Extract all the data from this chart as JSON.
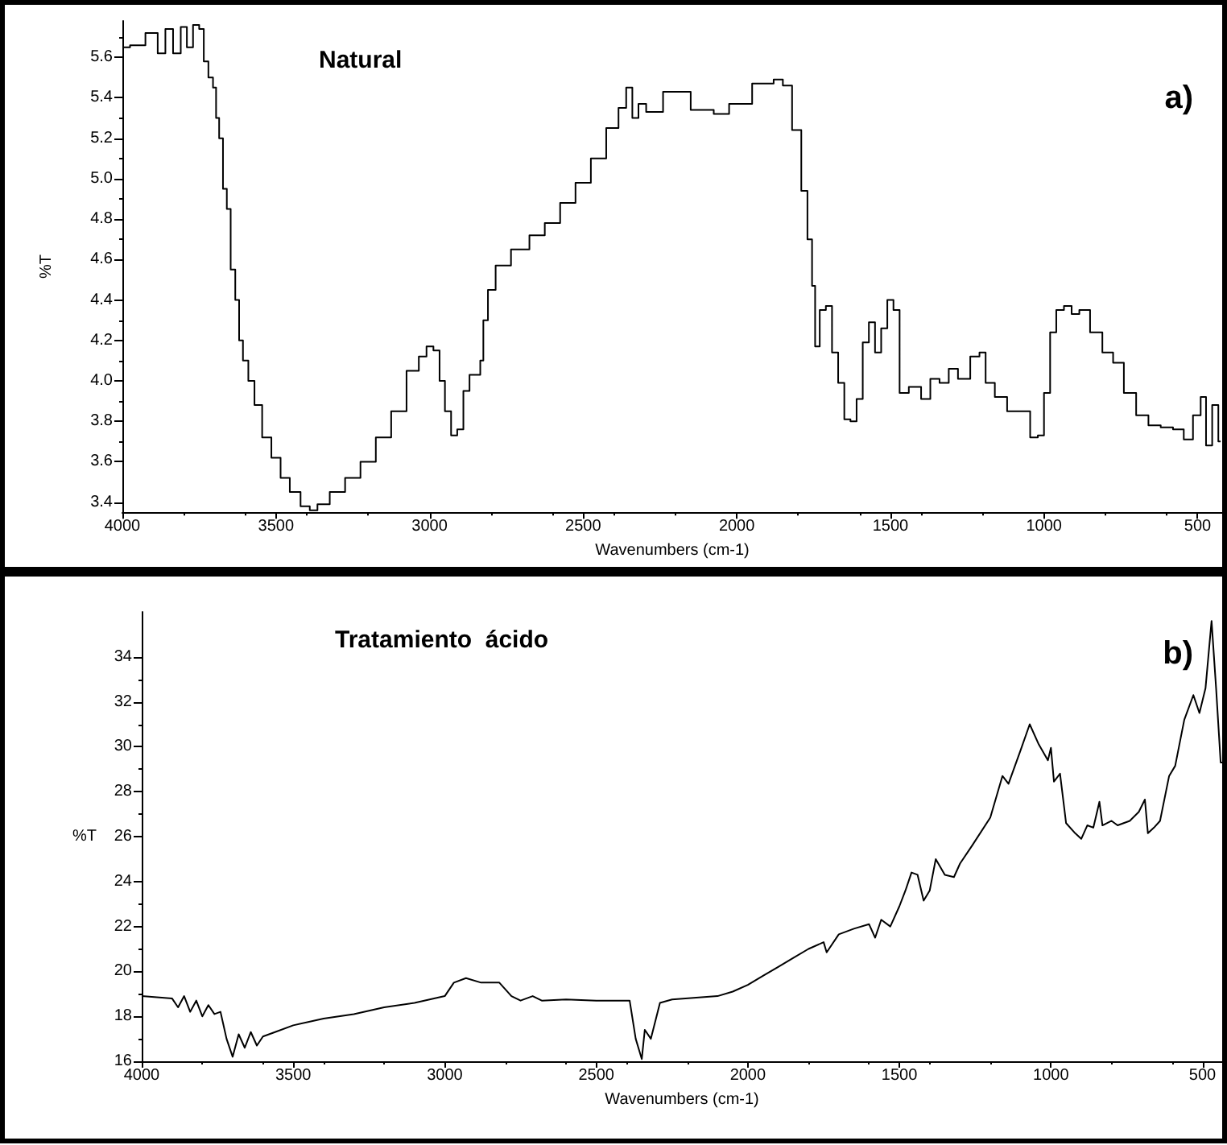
{
  "chart_data": [
    {
      "type": "step",
      "title": "Natural",
      "xlabel": "Wavenumbers (cm-1)",
      "ylabel": "%T",
      "annotations": [
        "a)"
      ],
      "xlim": [
        4000,
        420
      ],
      "xticks": [
        4000,
        3500,
        3000,
        2500,
        2000,
        1500,
        1000,
        500
      ],
      "ylim": [
        3.35,
        5.78
      ],
      "yticks": [
        3.4,
        3.6,
        3.8,
        {
          "value": 4,
          "label": "4.0"
        },
        4.2,
        4.4,
        4.6,
        4.8,
        {
          "value": 5,
          "label": "5.0"
        },
        5.2,
        5.4,
        5.6
      ],
      "grid": false,
      "series": [
        {
          "color": "#000000",
          "x": [
            4000,
            3950,
            3900,
            3870,
            3850,
            3820,
            3800,
            3780,
            3760,
            3740,
            3730,
            3710,
            3700,
            3690,
            3680,
            3665,
            3655,
            3640,
            3625,
            3615,
            3600,
            3580,
            3560,
            3530,
            3500,
            3470,
            3440,
            3400,
            3380,
            3350,
            3300,
            3250,
            3200,
            3150,
            3100,
            3050,
            3020,
            3000,
            2975,
            2960,
            2940,
            2920,
            2900,
            2880,
            2860,
            2840,
            2830,
            2820,
            2800,
            2770,
            2700,
            2650,
            2600,
            2550,
            2500,
            2450,
            2400,
            2370,
            2350,
            2330,
            2310,
            2280,
            2200,
            2100,
            2050,
            2000,
            1900,
            1860,
            1840,
            1800,
            1780,
            1760,
            1750,
            1740,
            1720,
            1700,
            1680,
            1660,
            1640,
            1620,
            1600,
            1580,
            1560,
            1540,
            1520,
            1500,
            1480,
            1460,
            1420,
            1380,
            1360,
            1320,
            1300,
            1260,
            1220,
            1200,
            1180,
            1140,
            1100,
            1060,
            1030,
            1010,
            990,
            970,
            950,
            920,
            900,
            870,
            830,
            790,
            760,
            720,
            680,
            640,
            600,
            560,
            530,
            500,
            480,
            465,
            440,
            425
          ],
          "values": [
            5.65,
            5.66,
            5.72,
            5.62,
            5.74,
            5.62,
            5.75,
            5.65,
            5.76,
            5.74,
            5.58,
            5.5,
            5.45,
            5.3,
            5.2,
            4.95,
            4.85,
            4.55,
            4.4,
            4.2,
            4.1,
            4.0,
            3.88,
            3.72,
            3.62,
            3.52,
            3.45,
            3.38,
            3.36,
            3.39,
            3.45,
            3.52,
            3.6,
            3.72,
            3.85,
            4.05,
            4.12,
            4.17,
            4.15,
            4.0,
            3.85,
            3.73,
            3.76,
            3.95,
            4.03,
            4.03,
            4.1,
            4.3,
            4.45,
            4.57,
            4.65,
            4.72,
            4.78,
            4.88,
            4.98,
            5.1,
            5.25,
            5.35,
            5.45,
            5.3,
            5.37,
            5.33,
            5.43,
            5.34,
            5.32,
            5.37,
            5.47,
            5.49,
            5.46,
            5.24,
            4.94,
            4.7,
            4.47,
            4.17,
            4.35,
            4.37,
            4.14,
            3.99,
            3.81,
            3.8,
            3.91,
            4.19,
            4.29,
            4.14,
            4.26,
            4.4,
            4.35,
            3.94,
            3.97,
            3.91,
            4.01,
            3.99,
            4.06,
            4.01,
            4.12,
            4.14,
            3.99,
            3.92,
            3.85,
            3.85,
            3.72,
            3.73,
            3.94,
            4.24,
            4.35,
            4.37,
            4.33,
            4.35,
            4.24,
            4.14,
            4.09,
            3.94,
            3.83,
            3.78,
            3.77,
            3.76,
            3.71,
            3.83,
            3.92,
            3.68,
            3.88,
            3.7
          ]
        }
      ]
    },
    {
      "type": "line",
      "title": "Tratamiento  ácido",
      "xlabel": "Wavenumbers (cm-1)",
      "ylabel": "%T",
      "annotations": [
        "b)"
      ],
      "xlim": [
        4000,
        435
      ],
      "xticks": [
        4000,
        3500,
        3000,
        2500,
        2000,
        1500,
        1000,
        500
      ],
      "ylim": [
        16,
        36
      ],
      "yticks": [
        16,
        18,
        20,
        22,
        24,
        26,
        28,
        30,
        32,
        34
      ],
      "grid": false,
      "series": [
        {
          "color": "#000000",
          "x": [
            4000,
            3900,
            3880,
            3860,
            3840,
            3820,
            3800,
            3780,
            3760,
            3740,
            3720,
            3700,
            3680,
            3660,
            3640,
            3620,
            3600,
            3560,
            3500,
            3400,
            3300,
            3200,
            3100,
            3000,
            2970,
            2930,
            2880,
            2820,
            2780,
            2750,
            2710,
            2680,
            2600,
            2500,
            2420,
            2390,
            2370,
            2350,
            2340,
            2320,
            2290,
            2250,
            2100,
            2050,
            2000,
            1950,
            1900,
            1850,
            1800,
            1750,
            1740,
            1700,
            1650,
            1600,
            1580,
            1560,
            1530,
            1500,
            1480,
            1460,
            1440,
            1420,
            1400,
            1380,
            1350,
            1320,
            1300,
            1260,
            1200,
            1160,
            1140,
            1100,
            1070,
            1040,
            1010,
            1000,
            990,
            970,
            950,
            920,
            900,
            880,
            860,
            840,
            830,
            800,
            780,
            740,
            710,
            690,
            680,
            660,
            640,
            610,
            590,
            560,
            530,
            510,
            490,
            470,
            455,
            440,
            435
          ],
          "values": [
            18.9,
            18.8,
            18.4,
            18.9,
            18.2,
            18.7,
            18.0,
            18.5,
            18.1,
            18.2,
            17.0,
            16.2,
            17.2,
            16.6,
            17.3,
            16.7,
            17.1,
            17.3,
            17.6,
            17.9,
            18.1,
            18.4,
            18.6,
            18.9,
            19.5,
            19.7,
            19.5,
            19.5,
            18.9,
            18.7,
            18.9,
            18.7,
            18.75,
            18.7,
            18.7,
            18.7,
            17.0,
            16.1,
            17.4,
            17.0,
            18.6,
            18.75,
            18.9,
            19.1,
            19.4,
            19.8,
            20.2,
            20.6,
            21.0,
            21.3,
            20.85,
            21.65,
            21.9,
            22.1,
            21.5,
            22.3,
            22.0,
            22.9,
            23.6,
            24.4,
            24.3,
            23.15,
            23.6,
            25.0,
            24.3,
            24.2,
            24.8,
            25.6,
            26.85,
            28.7,
            28.35,
            29.85,
            31.0,
            30.1,
            29.4,
            29.95,
            28.45,
            28.8,
            26.6,
            26.15,
            25.9,
            26.5,
            26.4,
            27.55,
            26.5,
            26.7,
            26.5,
            26.7,
            27.1,
            27.65,
            26.15,
            26.4,
            26.7,
            28.7,
            29.15,
            31.2,
            32.3,
            31.5,
            32.6,
            35.6,
            32.6,
            29.3,
            29.3
          ]
        }
      ]
    }
  ]
}
